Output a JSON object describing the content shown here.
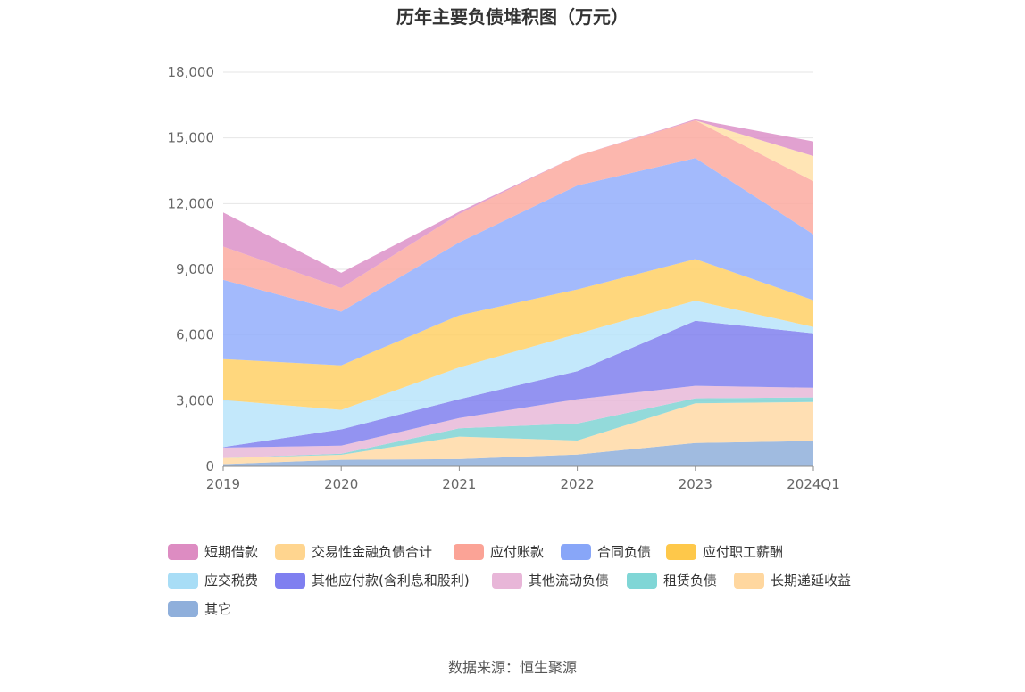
{
  "chart_data": {
    "type": "area",
    "stacked": true,
    "title": "历年主要负债堆积图（万元）",
    "xlabel": "",
    "ylabel": "",
    "categories": [
      "2019",
      "2020",
      "2021",
      "2022",
      "2023",
      "2024Q1"
    ],
    "ylim": [
      0,
      18000
    ],
    "yticks": [
      "0",
      "3,000",
      "6,000",
      "9,000",
      "12,000",
      "15,000",
      "18,000"
    ],
    "ytick_values": [
      0,
      3000,
      6000,
      9000,
      12000,
      15000,
      18000
    ],
    "grid": true,
    "legend_position": "bottom",
    "series": [
      {
        "name": "其它",
        "color": "#8fafdb",
        "values": [
          100,
          300,
          330,
          540,
          1070,
          1160
        ]
      },
      {
        "name": "长期递延收益",
        "color": "#ffd9a6",
        "values": [
          280,
          230,
          1030,
          640,
          1810,
          1780
        ]
      },
      {
        "name": "租赁负债",
        "color": "#80d4d4",
        "values": [
          0,
          50,
          380,
          780,
          230,
          210
        ]
      },
      {
        "name": "其他流动负债",
        "color": "#e8b8d8",
        "values": [
          480,
          370,
          470,
          1110,
          570,
          440
        ]
      },
      {
        "name": "其他应付款(含利息和股利)",
        "color": "#8080ee",
        "values": [
          20,
          740,
          860,
          1280,
          2970,
          2490
        ]
      },
      {
        "name": "应交税费",
        "color": "#b8e4fa",
        "values": [
          2150,
          890,
          1450,
          1700,
          920,
          290
        ]
      },
      {
        "name": "应付职工薪酬",
        "color": "#ffd066",
        "values": [
          1870,
          2030,
          2380,
          2030,
          1900,
          1220
        ]
      },
      {
        "name": "合同负债",
        "color": "#93aefc",
        "values": [
          3620,
          2460,
          3330,
          4750,
          4610,
          3010
        ]
      },
      {
        "name": "应付账款",
        "color": "#fcaaa0",
        "values": [
          1520,
          1080,
          1300,
          1350,
          1720,
          2420
        ]
      },
      {
        "name": "交易性金融负债合计",
        "color": "#ffe0a8",
        "values": [
          0,
          0,
          0,
          0,
          0,
          1150
        ]
      },
      {
        "name": "短期借款",
        "color": "#dc90c8",
        "values": [
          1560,
          690,
          100,
          0,
          50,
          670
        ]
      }
    ]
  },
  "legend_order": [
    "短期借款",
    "交易性金融负债合计",
    "应付账款",
    "合同负债",
    "应付职工薪酬",
    "应交税费",
    "其他应付款(含利息和股利)",
    "其他流动负债",
    "租赁负债",
    "长期递延收益",
    "其它"
  ],
  "legend_colors": {
    "短期借款": "#dd8cc2",
    "交易性金融负债合计": "#ffd58f",
    "应付账款": "#fba396",
    "合同负债": "#88a6f8",
    "应付职工薪酬": "#fec84a",
    "应交税费": "#a8ddf6",
    "其他应付款(含利息和股利)": "#7f7ff0",
    "其他流动负债": "#e8b6d8",
    "租赁负债": "#80d6d6",
    "长期递延收益": "#ffd79f",
    "其它": "#8fafdb"
  },
  "source": "数据来源：恒生聚源"
}
